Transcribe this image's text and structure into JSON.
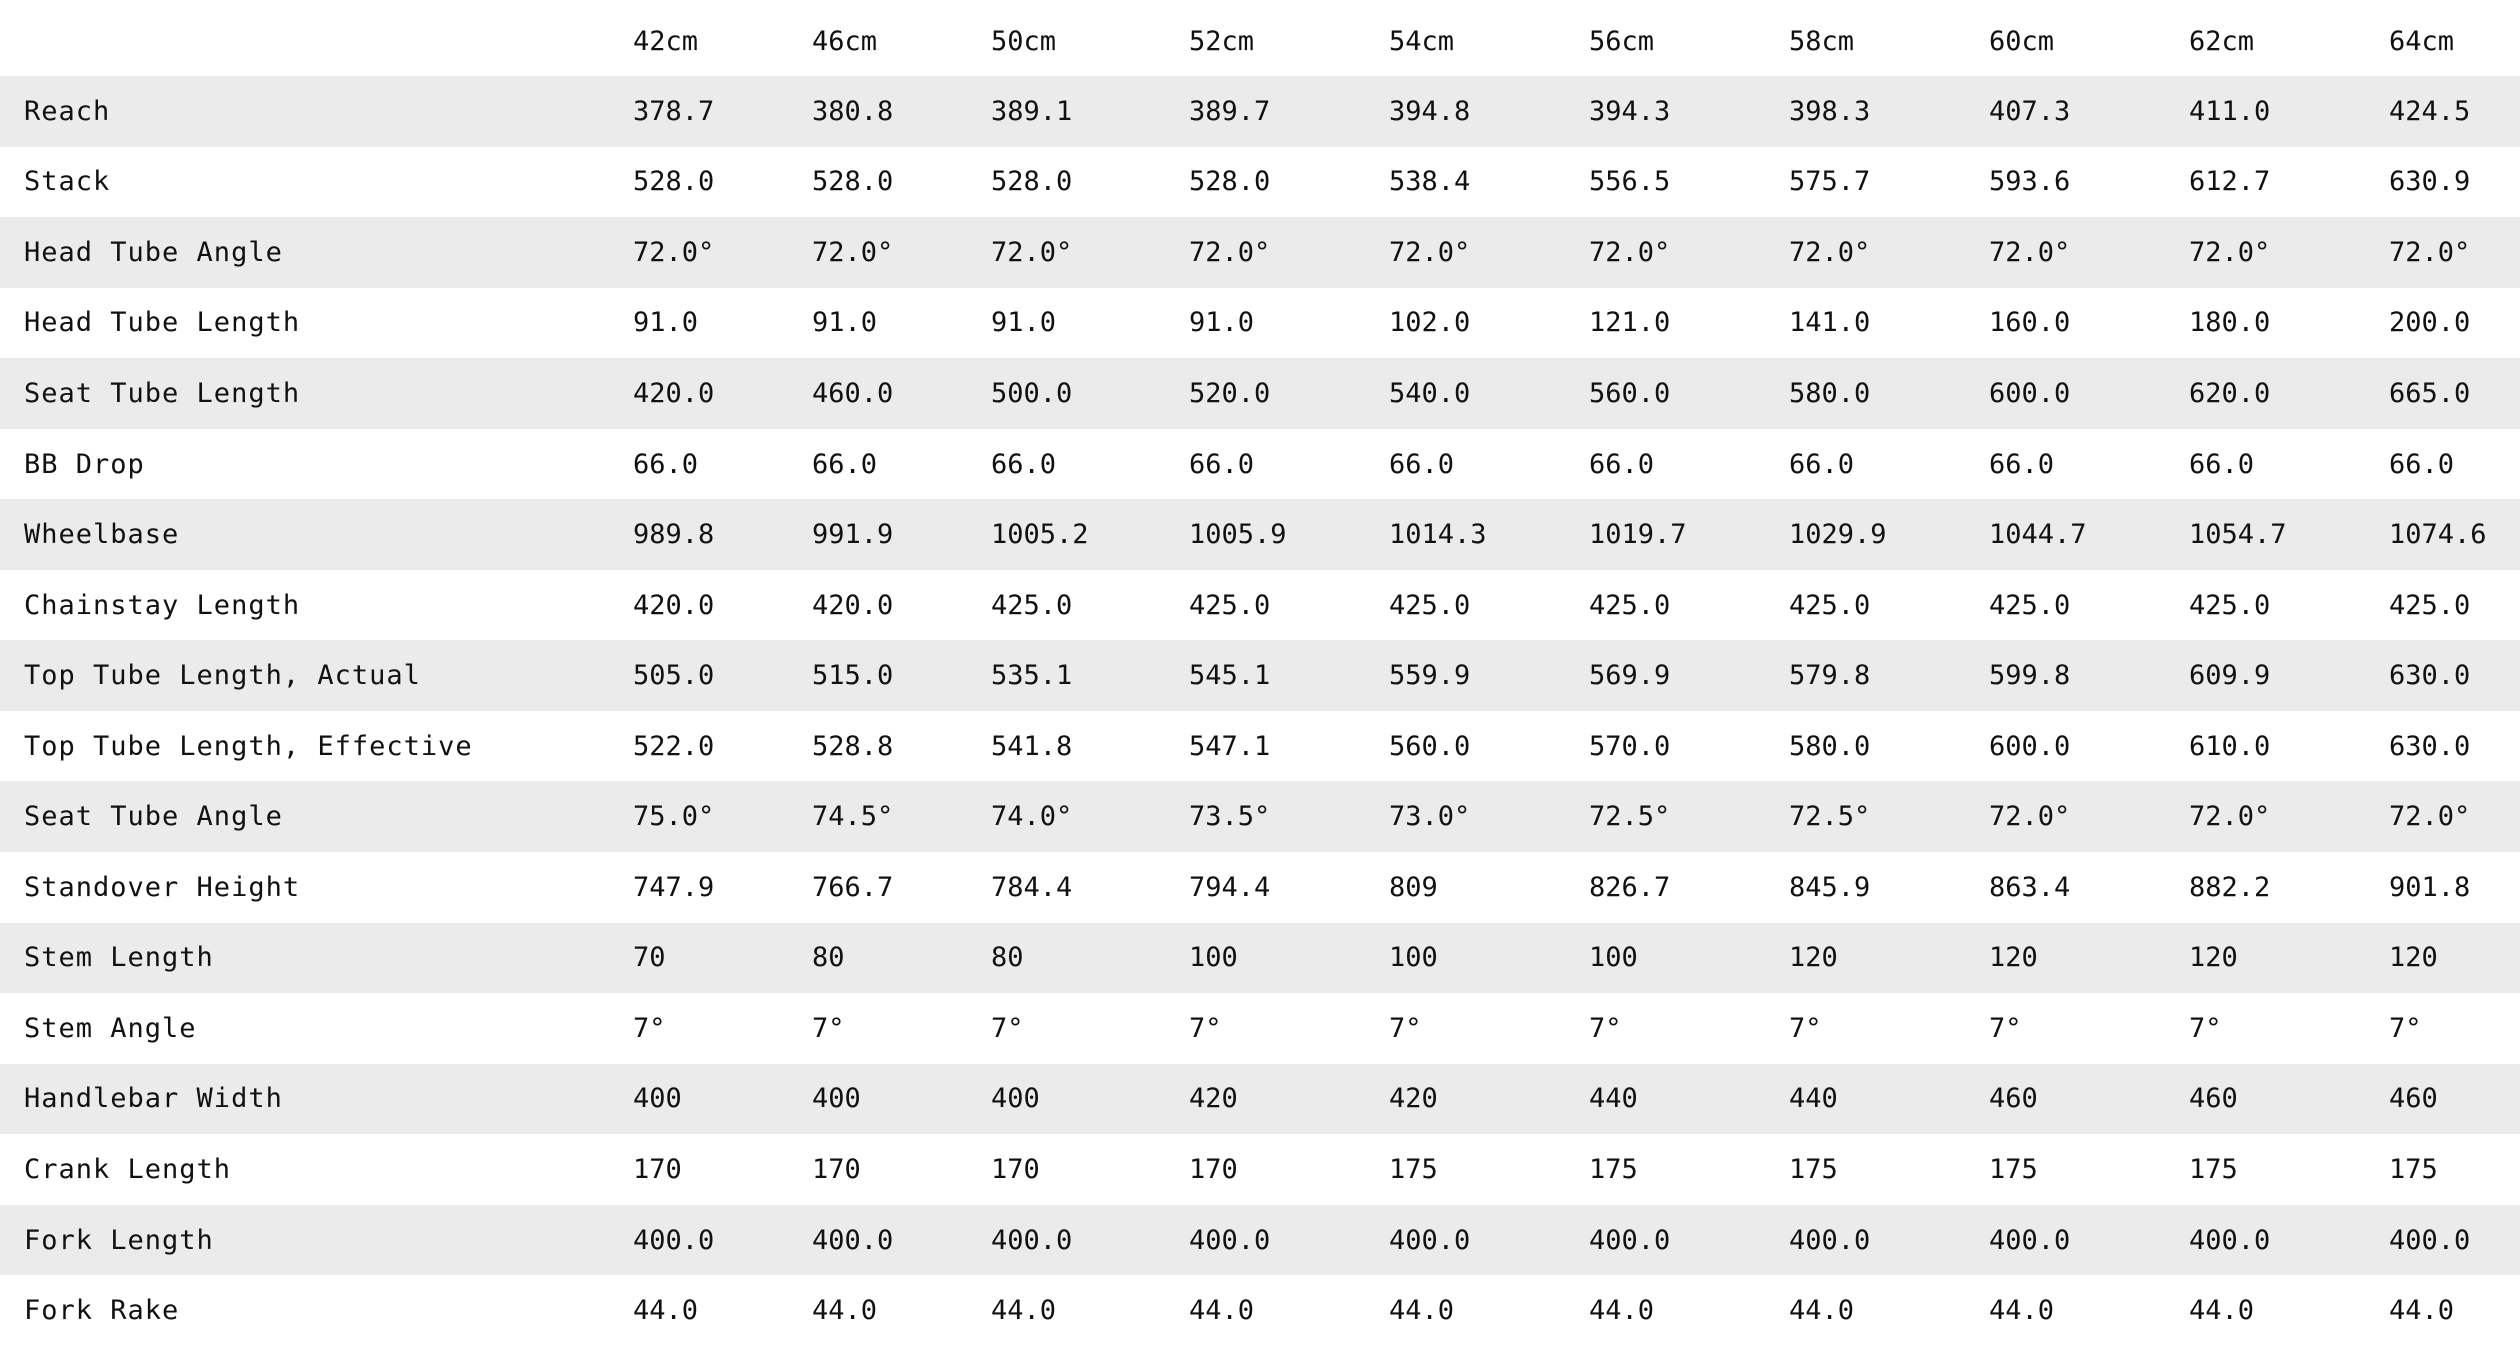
{
  "sizes": [
    "42cm",
    "46cm",
    "50cm",
    "52cm",
    "54cm",
    "56cm",
    "58cm",
    "60cm",
    "62cm",
    "64cm"
  ],
  "rows": [
    {
      "label": "Reach",
      "values": [
        "378.7",
        "380.8",
        "389.1",
        "389.7",
        "394.8",
        "394.3",
        "398.3",
        "407.3",
        "411.0",
        "424.5"
      ]
    },
    {
      "label": "Stack",
      "values": [
        "528.0",
        "528.0",
        "528.0",
        "528.0",
        "538.4",
        "556.5",
        "575.7",
        "593.6",
        "612.7",
        "630.9"
      ]
    },
    {
      "label": "Head Tube Angle",
      "values": [
        "72.0°",
        "72.0°",
        "72.0°",
        "72.0°",
        "72.0°",
        "72.0°",
        "72.0°",
        "72.0°",
        "72.0°",
        "72.0°"
      ]
    },
    {
      "label": "Head Tube Length",
      "values": [
        "91.0",
        "91.0",
        "91.0",
        "91.0",
        "102.0",
        "121.0",
        "141.0",
        "160.0",
        "180.0",
        "200.0"
      ]
    },
    {
      "label": "Seat Tube Length",
      "values": [
        "420.0",
        "460.0",
        "500.0",
        "520.0",
        "540.0",
        "560.0",
        "580.0",
        "600.0",
        "620.0",
        "665.0"
      ]
    },
    {
      "label": "BB Drop",
      "values": [
        "66.0",
        "66.0",
        "66.0",
        "66.0",
        "66.0",
        "66.0",
        "66.0",
        "66.0",
        "66.0",
        "66.0"
      ]
    },
    {
      "label": "Wheelbase",
      "values": [
        "989.8",
        "991.9",
        "1005.2",
        "1005.9",
        "1014.3",
        "1019.7",
        "1029.9",
        "1044.7",
        "1054.7",
        "1074.6"
      ]
    },
    {
      "label": "Chainstay Length",
      "values": [
        "420.0",
        "420.0",
        "425.0",
        "425.0",
        "425.0",
        "425.0",
        "425.0",
        "425.0",
        "425.0",
        "425.0"
      ]
    },
    {
      "label": "Top Tube Length, Actual",
      "values": [
        "505.0",
        "515.0",
        "535.1",
        "545.1",
        "559.9",
        "569.9",
        "579.8",
        "599.8",
        "609.9",
        "630.0"
      ]
    },
    {
      "label": "Top Tube Length, Effective",
      "values": [
        "522.0",
        "528.8",
        "541.8",
        "547.1",
        "560.0",
        "570.0",
        "580.0",
        "600.0",
        "610.0",
        "630.0"
      ]
    },
    {
      "label": "Seat Tube Angle",
      "values": [
        "75.0°",
        "74.5°",
        "74.0°",
        "73.5°",
        "73.0°",
        "72.5°",
        "72.5°",
        "72.0°",
        "72.0°",
        "72.0°"
      ]
    },
    {
      "label": "Standover Height",
      "values": [
        "747.9",
        "766.7",
        "784.4",
        "794.4",
        "809",
        "826.7",
        "845.9",
        "863.4",
        "882.2",
        "901.8"
      ]
    },
    {
      "label": "Stem Length",
      "values": [
        "70",
        "80",
        "80",
        "100",
        "100",
        "100",
        "120",
        "120",
        "120",
        "120"
      ]
    },
    {
      "label": "Stem Angle",
      "values": [
        "7°",
        "7°",
        "7°",
        "7°",
        "7°",
        "7°",
        "7°",
        "7°",
        "7°",
        "7°"
      ]
    },
    {
      "label": "Handlebar Width",
      "values": [
        "400",
        "400",
        "400",
        "420",
        "420",
        "440",
        "440",
        "460",
        "460",
        "460"
      ]
    },
    {
      "label": "Crank Length",
      "values": [
        "170",
        "170",
        "170",
        "170",
        "175",
        "175",
        "175",
        "175",
        "175",
        "175"
      ]
    },
    {
      "label": "Fork Length",
      "values": [
        "400.0",
        "400.0",
        "400.0",
        "400.0",
        "400.0",
        "400.0",
        "400.0",
        "400.0",
        "400.0",
        "400.0"
      ]
    },
    {
      "label": "Fork Rake",
      "values": [
        "44.0",
        "44.0",
        "44.0",
        "44.0",
        "44.0",
        "44.0",
        "44.0",
        "44.0",
        "44.0",
        "44.0"
      ]
    }
  ],
  "colors": {
    "stripe": "#ebebeb",
    "background": "#ffffff",
    "text": "#111111"
  }
}
